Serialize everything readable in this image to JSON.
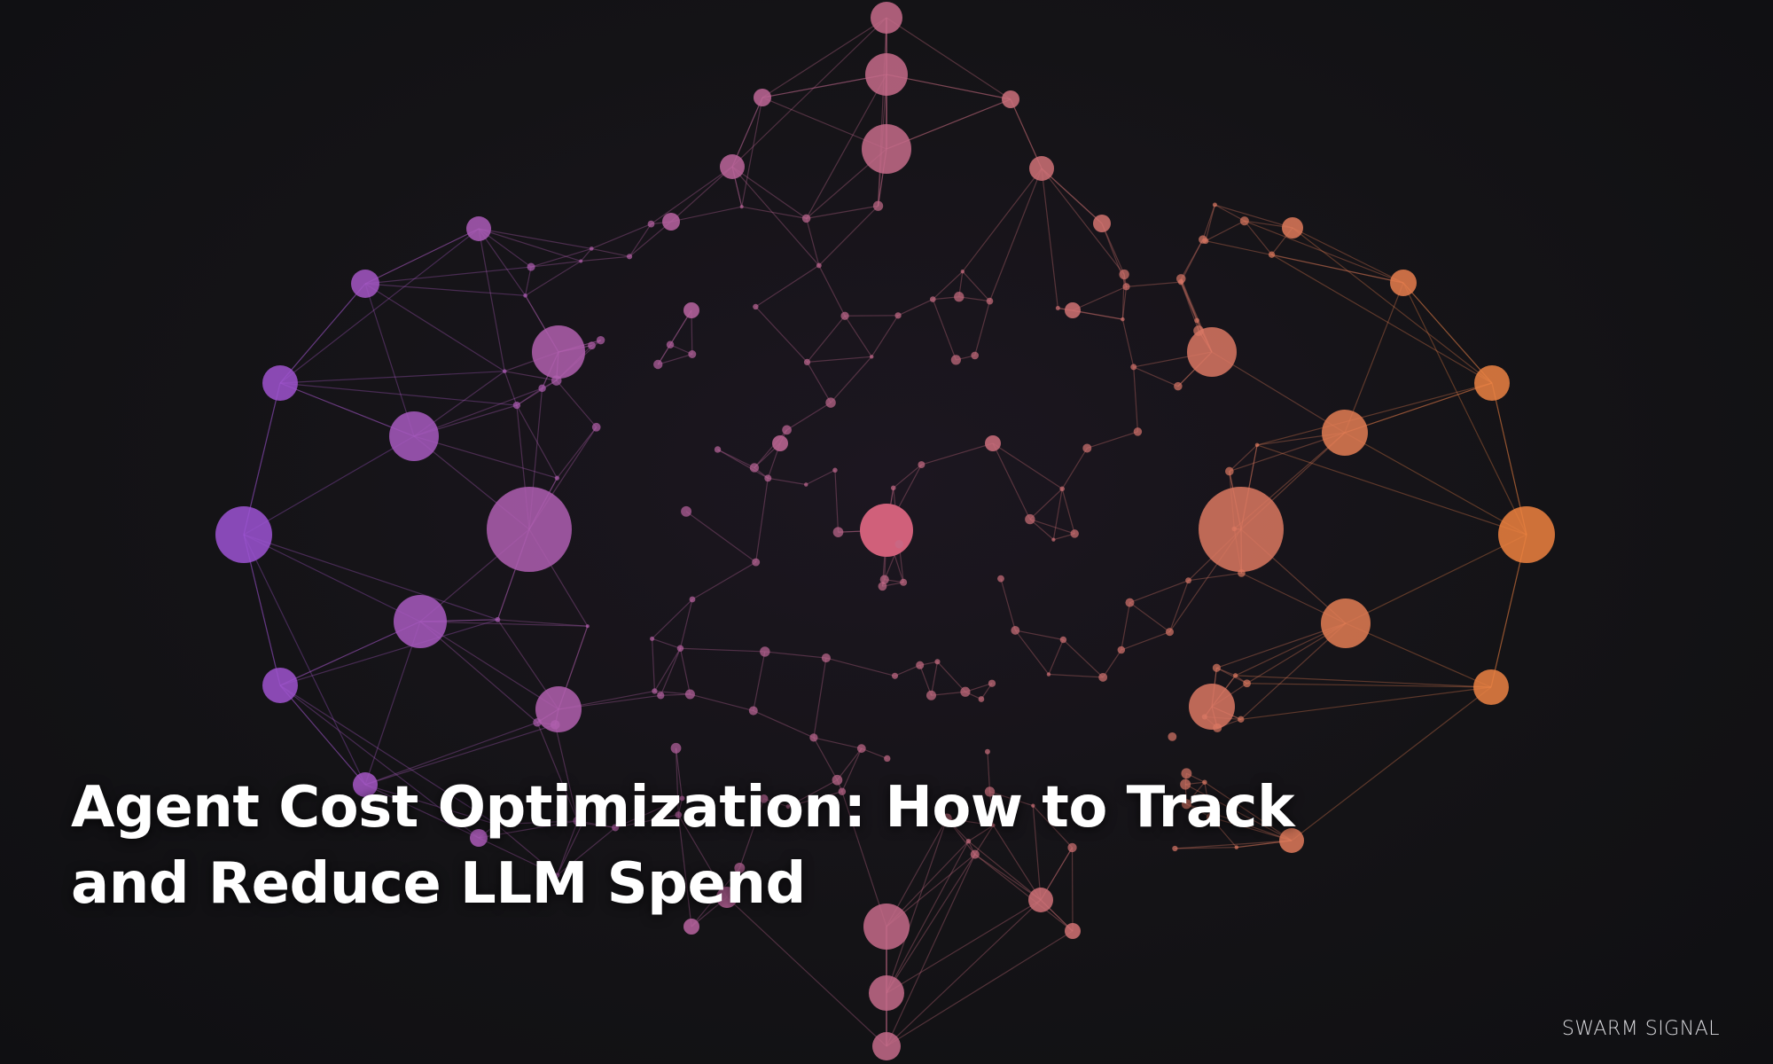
{
  "title": {
    "line1": "Agent Cost Optimization: How to Track",
    "line2": "and Reduce LLM Spend"
  },
  "brand": "SWARM SIGNAL",
  "colors": {
    "background": "#111114",
    "node_left": "#9b52d6",
    "node_right": "#f0843c",
    "node_center": "#d0607a",
    "title": "#ffffff"
  }
}
